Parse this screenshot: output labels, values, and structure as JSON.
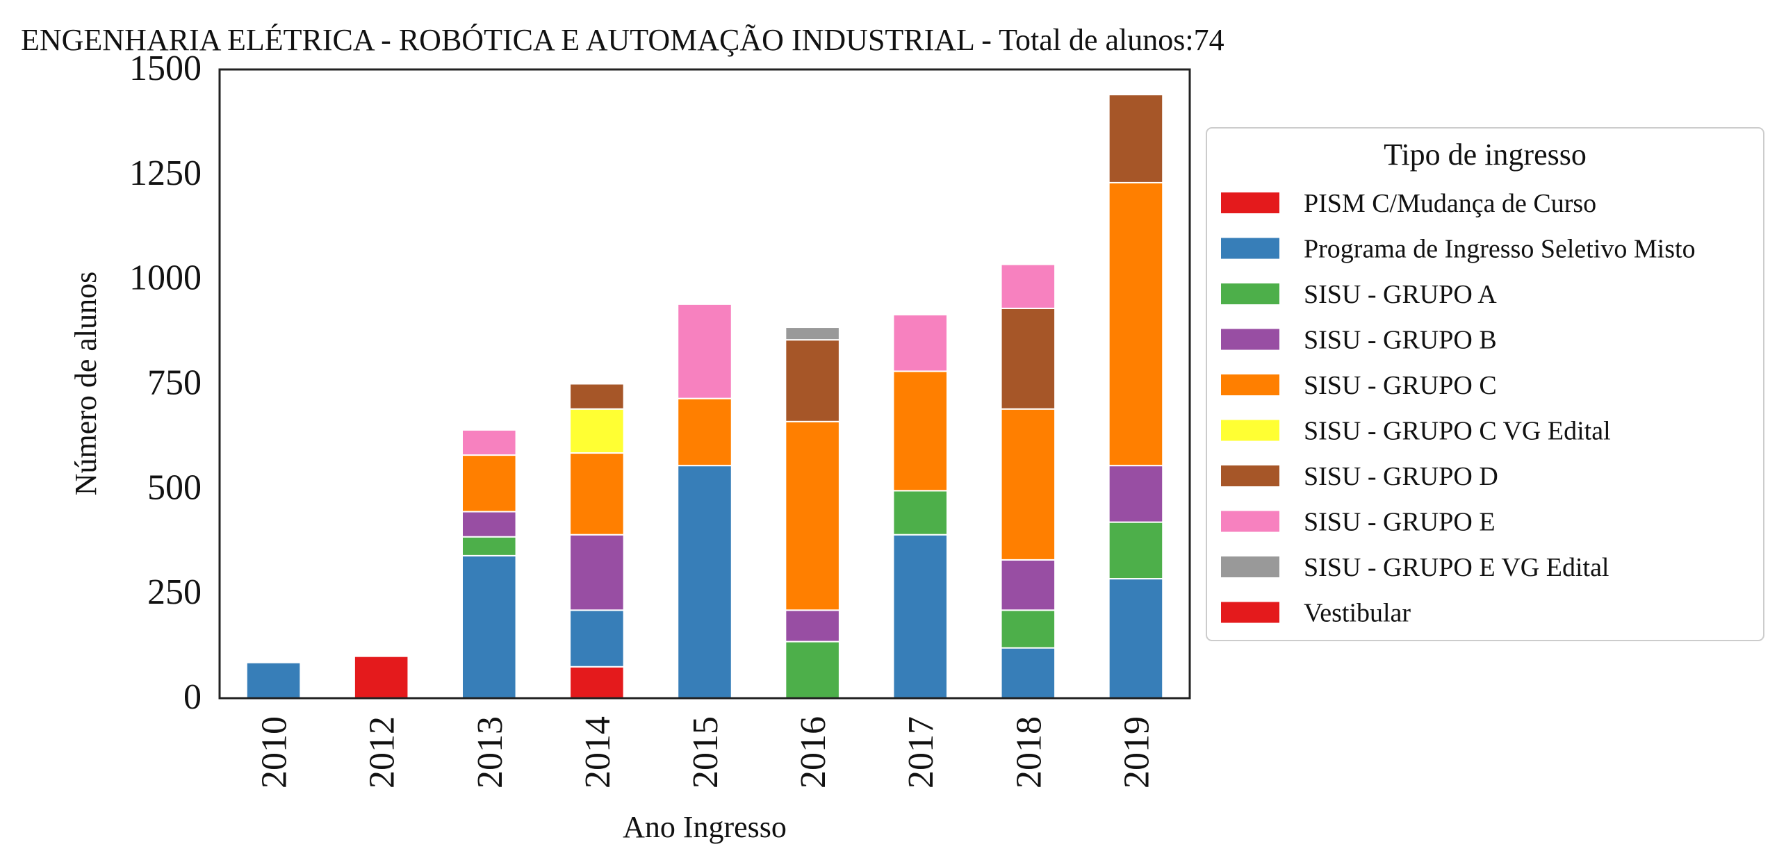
{
  "chart_data": {
    "type": "bar",
    "stacked": true,
    "title": "ENGENHARIA ELÉTRICA - ROBÓTICA E AUTOMAÇÃO INDUSTRIAL - Total de alunos:74",
    "xlabel": "Ano Ingresso",
    "ylabel": "Número de alunos",
    "ylim": [
      0,
      1500
    ],
    "yticks": [
      "0",
      "250",
      "500",
      "750",
      "1000",
      "1250",
      "1500"
    ],
    "grid": false,
    "legend_title": "Tipo de ingresso",
    "legend_position": "outside-right",
    "categories": [
      "2010",
      "2012",
      "2013",
      "2014",
      "2015",
      "2016",
      "2017",
      "2018",
      "2019"
    ],
    "series": [
      {
        "name": "PISM C/Mudança de Curso",
        "color": "#e41a1c",
        "values": [
          0,
          0,
          0,
          0,
          0,
          0,
          0,
          0,
          0
        ]
      },
      {
        "name": "Programa de Ingresso Seletivo Misto",
        "color": "#377eb8",
        "values": [
          85,
          0,
          340,
          135,
          555,
          0,
          390,
          120,
          285
        ]
      },
      {
        "name": "SISU - GRUPO A",
        "color": "#4daf4a",
        "values": [
          0,
          0,
          45,
          0,
          0,
          135,
          105,
          90,
          135
        ]
      },
      {
        "name": "SISU - GRUPO B",
        "color": "#984ea3",
        "values": [
          0,
          0,
          60,
          180,
          0,
          75,
          0,
          120,
          135
        ]
      },
      {
        "name": "SISU - GRUPO C",
        "color": "#ff7f00",
        "values": [
          0,
          0,
          135,
          195,
          160,
          450,
          285,
          360,
          675
        ]
      },
      {
        "name": "SISU - GRUPO C VG Edital",
        "color": "#ffff33",
        "values": [
          0,
          0,
          0,
          105,
          0,
          0,
          0,
          0,
          0
        ]
      },
      {
        "name": "SISU - GRUPO D",
        "color": "#a65628",
        "values": [
          0,
          0,
          0,
          60,
          0,
          195,
          0,
          240,
          210
        ]
      },
      {
        "name": "SISU - GRUPO E",
        "color": "#f781bf",
        "values": [
          0,
          0,
          60,
          0,
          225,
          0,
          135,
          105,
          0
        ]
      },
      {
        "name": "SISU - GRUPO E VG Edital",
        "color": "#999999",
        "values": [
          0,
          0,
          0,
          0,
          0,
          30,
          0,
          0,
          0
        ]
      },
      {
        "name": "Vestibular",
        "color": "#e41a1c",
        "values": [
          0,
          100,
          0,
          75,
          0,
          0,
          0,
          0,
          0
        ]
      }
    ],
    "stack_order": [
      9,
      0,
      1,
      2,
      3,
      4,
      5,
      6,
      7,
      8
    ]
  }
}
